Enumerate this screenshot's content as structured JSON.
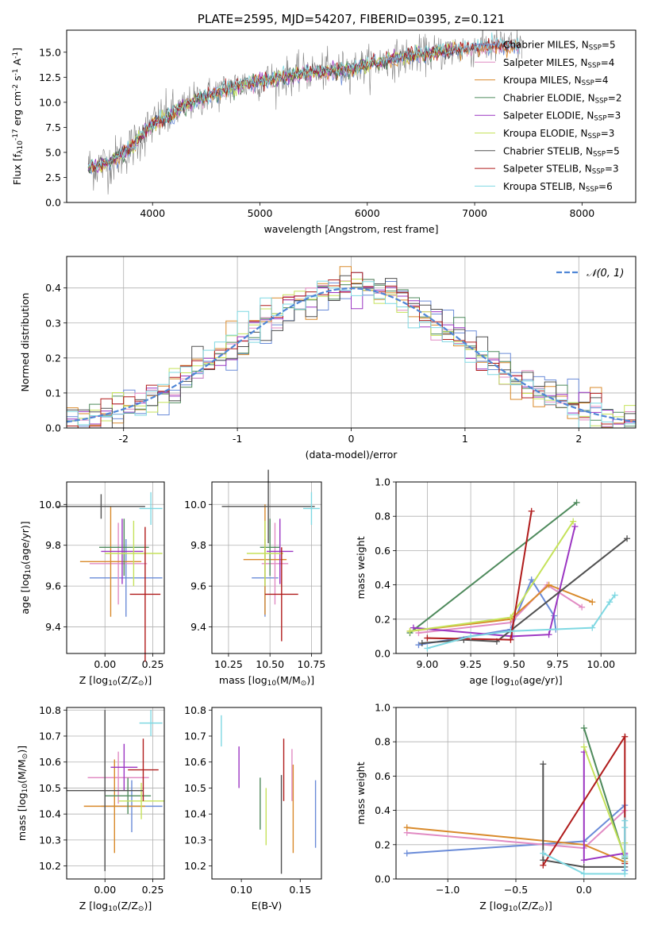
{
  "chart_data": [
    {
      "id": "spectrum",
      "type": "line",
      "title": "PLATE=2595, MJD=54207, FIBERID=0395, z=0.121",
      "xlabel": "wavelength [Angstrom, rest frame]",
      "ylabel": "Flux [f$_\\lambda$10$^{-17}$ erg cm$^{-2}$ s$^{-1}$ A$^{-1}$]",
      "xlim": [
        3200,
        8500
      ],
      "ylim": [
        0,
        17.2
      ],
      "xticks": [
        4000,
        5000,
        6000,
        7000,
        8000
      ],
      "yticks": [
        0.0,
        2.5,
        5.0,
        7.5,
        10.0,
        12.5,
        15.0
      ],
      "grid": false,
      "legend_position": "upper right",
      "continuum": {
        "x": [
          3400,
          3600,
          3800,
          4000,
          4200,
          4400,
          4600,
          4800,
          5000,
          5200,
          5400,
          5600,
          5800,
          6000,
          6200,
          6400,
          6600,
          6800,
          7000,
          7200,
          7400
        ],
        "y": [
          3.5,
          3.9,
          5.5,
          7.8,
          8.9,
          10.2,
          11.0,
          11.7,
          12.1,
          12.5,
          12.9,
          13.1,
          13.3,
          13.7,
          14.2,
          14.6,
          14.9,
          15.2,
          15.4,
          15.6,
          15.6
        ]
      },
      "series": [
        {
          "name": "Chabrier MILES, N$_{SSP}$=5",
          "color": "#6a8bd8",
          "xmax": 7420
        },
        {
          "name": "Salpeter MILES, N$_{SSP}$=4",
          "color": "#e18bc3",
          "xmax": 7420
        },
        {
          "name": "Kroupa MILES, N$_{SSP}$=4",
          "color": "#d98a2b",
          "xmax": 7420
        },
        {
          "name": "Chabrier ELODIE, N$_{SSP}$=2",
          "color": "#4e8a5c",
          "xmax": 6800
        },
        {
          "name": "Salpeter ELODIE, N$_{SSP}$=3",
          "color": "#9b35c2",
          "xmax": 6800
        },
        {
          "name": "Kroupa ELODIE, N$_{SSP}$=3",
          "color": "#c5e25a",
          "xmax": 6800
        },
        {
          "name": "Chabrier STELIB, N$_{SSP}$=5",
          "color": "#505050",
          "xmax": 7420
        },
        {
          "name": "Salpeter STELIB, N$_{SSP}$=3",
          "color": "#b01c1c",
          "xmax": 7420
        },
        {
          "name": "Kroupa STELIB, N$_{SSP}$=6",
          "color": "#7fd8e2",
          "xmax": 7420
        }
      ],
      "data_color": "#808080"
    },
    {
      "id": "residuals",
      "type": "area",
      "xlabel": "(data-model)/error",
      "ylabel": "Normed distribution",
      "xlim": [
        -2.5,
        2.5
      ],
      "ylim": [
        0,
        0.49
      ],
      "xticks": [
        -2,
        -1,
        0,
        1,
        2
      ],
      "yticks": [
        0.0,
        0.1,
        0.2,
        0.3,
        0.4
      ],
      "grid": true,
      "legend_position": "upper right",
      "reference_label": "$\\mathcal{N}(0,1)$",
      "reference_color": "#4f86d6"
    },
    {
      "id": "age-vs-Z",
      "type": "scatter",
      "xlabel": "Z [log$_{10}$(Z/Z$_\\odot$)]",
      "ylabel": "age  [log$_{10}$(age/yr)]",
      "xlim": [
        -0.2,
        0.31
      ],
      "ylim": [
        9.27,
        10.11
      ],
      "xticks": [
        0.0,
        0.25
      ],
      "xticklabels": [
        "0.00",
        "0.25"
      ],
      "yticks": [
        9.4,
        9.6,
        9.8,
        10.0
      ],
      "grid": true,
      "points": [
        {
          "x": 0.11,
          "y": 9.64,
          "xerr": 0.19,
          "yerr": 0.19
        },
        {
          "x": 0.07,
          "y": 9.71,
          "xerr": 0.15,
          "yerr": 0.2
        },
        {
          "x": 0.03,
          "y": 9.72,
          "xerr": 0.16,
          "yerr": 0.27
        },
        {
          "x": 0.1,
          "y": 9.79,
          "xerr": 0.13,
          "yerr": 0.14
        },
        {
          "x": 0.09,
          "y": 9.77,
          "xerr": 0.11,
          "yerr": 0.16
        },
        {
          "x": 0.15,
          "y": 9.76,
          "xerr": 0.15,
          "yerr": 0.16
        },
        {
          "x": -0.02,
          "y": 9.99,
          "xerr": 0.23,
          "yerr": 0.06
        },
        {
          "x": 0.21,
          "y": 9.56,
          "xerr": 0.08,
          "yerr": 0.33
        },
        {
          "x": 0.24,
          "y": 9.98,
          "xerr": 0.06,
          "yerr": 0.08
        }
      ]
    },
    {
      "id": "age-vs-mass",
      "type": "scatter",
      "xlabel": "mass [log$_{10}$(M/M$_\\odot$)]",
      "xlim": [
        10.15,
        10.81
      ],
      "ylim": [
        9.27,
        10.11
      ],
      "xticks": [
        10.25,
        10.5,
        10.75
      ],
      "xticklabels": [
        "10.25",
        "10.50",
        "10.75"
      ],
      "yticks": [
        9.4,
        9.6,
        9.8,
        10.0
      ],
      "grid": true,
      "points": [
        {
          "x": 10.47,
          "y": 9.64,
          "xerr": 0.08,
          "yerr": 0.19
        },
        {
          "x": 10.53,
          "y": 9.71,
          "xerr": 0.08,
          "yerr": 0.2
        },
        {
          "x": 10.47,
          "y": 9.73,
          "xerr": 0.13,
          "yerr": 0.27
        },
        {
          "x": 10.5,
          "y": 9.79,
          "xerr": 0.06,
          "yerr": 0.14
        },
        {
          "x": 10.56,
          "y": 9.77,
          "xerr": 0.08,
          "yerr": 0.16
        },
        {
          "x": 10.47,
          "y": 9.76,
          "xerr": 0.11,
          "yerr": 0.16
        },
        {
          "x": 10.49,
          "y": 9.99,
          "xerr": 0.28,
          "yerr": 0.18
        },
        {
          "x": 10.57,
          "y": 9.56,
          "xerr": 0.1,
          "yerr": 0.23
        },
        {
          "x": 10.75,
          "y": 9.98,
          "xerr": 0.05,
          "yerr": 0.08
        }
      ]
    },
    {
      "id": "mass-weight-vs-age",
      "type": "line",
      "xlabel": "age  [log$_{10}$(age/yr)]",
      "ylabel": "mass weight",
      "xlim": [
        8.82,
        10.2
      ],
      "ylim": [
        0,
        1.0
      ],
      "xticks": [
        9.0,
        9.25,
        9.5,
        9.75,
        10.0
      ],
      "xticklabels": [
        "9.00",
        "9.25",
        "9.50",
        "9.75",
        "10.00"
      ],
      "yticks": [
        0.0,
        0.2,
        0.4,
        0.6,
        0.8,
        1.0
      ],
      "grid": true,
      "series": [
        {
          "x": [
            8.95,
            9.48,
            9.6,
            9.73,
            9.74
          ],
          "y": [
            0.05,
            0.14,
            0.43,
            0.22,
            0.14
          ]
        },
        {
          "x": [
            8.95,
            9.48,
            9.69,
            9.89
          ],
          "y": [
            0.12,
            0.18,
            0.4,
            0.27
          ]
        },
        {
          "x": [
            8.9,
            9.48,
            9.7,
            9.95
          ],
          "y": [
            0.13,
            0.2,
            0.4,
            0.3
          ]
        },
        {
          "x": [
            8.9,
            9.86
          ],
          "y": [
            0.12,
            0.88
          ]
        },
        {
          "x": [
            8.92,
            9.49,
            9.7,
            9.85
          ],
          "y": [
            0.15,
            0.1,
            0.11,
            0.74
          ]
        },
        {
          "x": [
            8.9,
            9.48,
            9.84
          ],
          "y": [
            0.13,
            0.21,
            0.77
          ]
        },
        {
          "x": [
            8.97,
            9.21,
            9.4,
            10.15
          ],
          "y": [
            0.06,
            0.08,
            0.07,
            0.67
          ]
        },
        {
          "x": [
            9.0,
            9.48,
            9.6
          ],
          "y": [
            0.09,
            0.08,
            0.83
          ]
        },
        {
          "x": [
            9.0,
            9.25,
            9.48,
            9.95,
            10.05,
            10.08
          ],
          "y": [
            0.03,
            0.1,
            0.13,
            0.15,
            0.3,
            0.34
          ]
        }
      ]
    },
    {
      "id": "mass-vs-Z",
      "type": "scatter",
      "xlabel": "Z [log$_{10}$(Z/Z$_\\odot$)]",
      "ylabel": "mass [log$_{10}$(M/M$_\\odot$)]",
      "xlim": [
        -0.2,
        0.31
      ],
      "ylim": [
        10.15,
        10.81
      ],
      "xticks": [
        0.0,
        0.25
      ],
      "xticklabels": [
        "0.00",
        "0.25"
      ],
      "yticks": [
        10.2,
        10.3,
        10.4,
        10.5,
        10.6,
        10.7,
        10.8
      ],
      "grid": true,
      "points": [
        {
          "x": 0.14,
          "y": 10.43,
          "xerr": 0.16,
          "yerr": 0.1
        },
        {
          "x": 0.07,
          "y": 10.54,
          "xerr": 0.16,
          "yerr": 0.1
        },
        {
          "x": 0.05,
          "y": 10.43,
          "xerr": 0.16,
          "yerr": 0.18
        },
        {
          "x": 0.12,
          "y": 10.47,
          "xerr": 0.12,
          "yerr": 0.07
        },
        {
          "x": 0.1,
          "y": 10.58,
          "xerr": 0.07,
          "yerr": 0.09
        },
        {
          "x": 0.19,
          "y": 10.45,
          "xerr": 0.12,
          "yerr": 0.07
        },
        {
          "x": 0.0,
          "y": 10.49,
          "xerr": 0.2,
          "yerr": 0.31
        },
        {
          "x": 0.2,
          "y": 10.57,
          "xerr": 0.08,
          "yerr": 0.12
        },
        {
          "x": 0.24,
          "y": 10.75,
          "xerr": 0.06,
          "yerr": 0.05
        }
      ]
    },
    {
      "id": "mass-vs-EBV",
      "type": "scatter",
      "xlabel": "E(B-V)",
      "xlim": [
        0.075,
        0.168
      ],
      "ylim": [
        10.15,
        10.81
      ],
      "xticks": [
        0.1,
        0.15
      ],
      "xticklabels": [
        "0.10",
        "0.15"
      ],
      "yticks": [
        10.2,
        10.3,
        10.4,
        10.5,
        10.6,
        10.7,
        10.8
      ],
      "grid": false,
      "points": [
        {
          "x": 0.163,
          "y": 10.4,
          "xerr": 0,
          "yerr": 0.13
        },
        {
          "x": 0.143,
          "y": 10.55,
          "xerr": 0,
          "yerr": 0.1
        },
        {
          "x": 0.144,
          "y": 10.42,
          "xerr": 0,
          "yerr": 0.17
        },
        {
          "x": 0.116,
          "y": 10.44,
          "xerr": 0,
          "yerr": 0.1
        },
        {
          "x": 0.098,
          "y": 10.58,
          "xerr": 0,
          "yerr": 0.08
        },
        {
          "x": 0.121,
          "y": 10.39,
          "xerr": 0,
          "yerr": 0.11
        },
        {
          "x": 0.134,
          "y": 10.36,
          "xerr": 0,
          "yerr": 0.19
        },
        {
          "x": 0.136,
          "y": 10.57,
          "xerr": 0,
          "yerr": 0.12
        },
        {
          "x": 0.083,
          "y": 10.72,
          "xerr": 0,
          "yerr": 0.06
        }
      ]
    },
    {
      "id": "mass-weight-vs-Z",
      "type": "line",
      "xlabel": "Z [log$_{10}$(Z/Z$_\\odot$)]",
      "ylabel": "mass weight",
      "xlim": [
        -1.38,
        0.38
      ],
      "ylim": [
        0,
        1.0
      ],
      "xticks": [
        -1.0,
        -0.5,
        0.0
      ],
      "xticklabels": [
        "−1.0",
        "−0.5",
        "0.0"
      ],
      "yticks": [
        0.0,
        0.2,
        0.4,
        0.6,
        0.8,
        1.0
      ],
      "grid": true,
      "series": [
        {
          "x": [
            -1.3,
            0.0,
            0.3,
            0.3,
            0.3
          ],
          "y": [
            0.15,
            0.22,
            0.43,
            0.05,
            0.14
          ]
        },
        {
          "x": [
            -1.3,
            0.0,
            0.3
          ],
          "y": [
            0.27,
            0.18,
            0.4
          ]
        },
        {
          "x": [
            -1.3,
            0.0,
            0.3
          ],
          "y": [
            0.3,
            0.2,
            0.1
          ]
        },
        {
          "x": [
            0.0,
            0.3
          ],
          "y": [
            0.88,
            0.12
          ]
        },
        {
          "x": [
            0.0,
            0.0,
            0.3
          ],
          "y": [
            0.74,
            0.11,
            0.15
          ]
        },
        {
          "x": [
            0.0,
            0.3,
            0.3
          ],
          "y": [
            0.77,
            0.13,
            0.21
          ]
        },
        {
          "x": [
            -0.3,
            -0.3,
            0.0,
            0.3
          ],
          "y": [
            0.67,
            0.11,
            0.07,
            0.07
          ]
        },
        {
          "x": [
            -0.3,
            0.3,
            0.3
          ],
          "y": [
            0.08,
            0.83,
            0.09
          ]
        },
        {
          "x": [
            -0.3,
            0.0,
            0.3,
            0.3,
            0.3,
            0.3
          ],
          "y": [
            0.15,
            0.03,
            0.03,
            0.13,
            0.3,
            0.34
          ]
        }
      ]
    }
  ],
  "palette": [
    "#6a8bd8",
    "#e18bc3",
    "#d98a2b",
    "#4e8a5c",
    "#9b35c2",
    "#c5e25a",
    "#505050",
    "#b01c1c",
    "#7fd8e2"
  ]
}
